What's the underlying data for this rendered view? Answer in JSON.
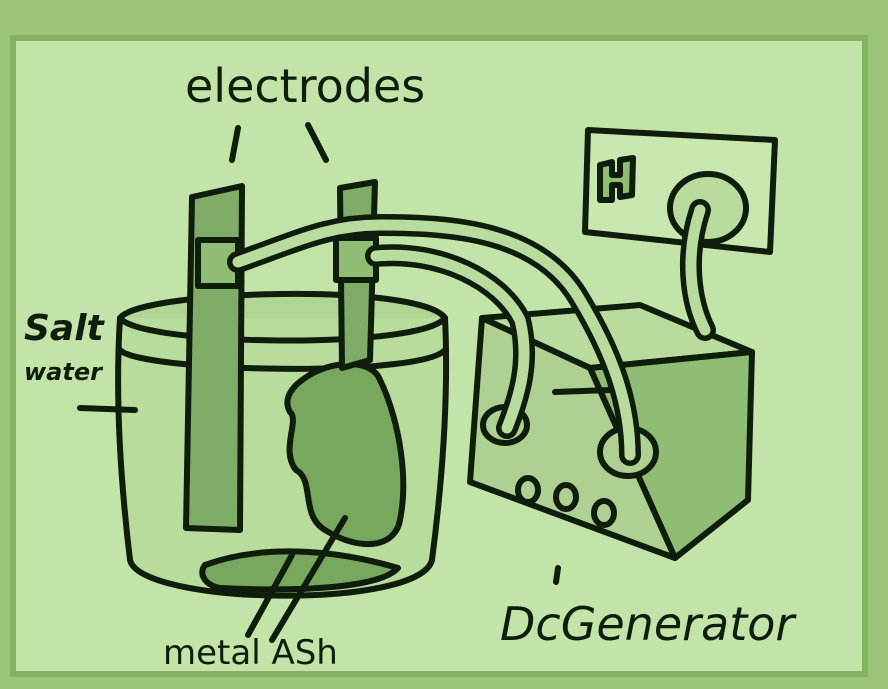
{
  "labels": {
    "electrodes": "electrodes",
    "salt": "Salt",
    "water": "water",
    "metal_ash": "metal ASh",
    "generator": "DcGenerator"
  },
  "colors": {
    "outer_border": "#9bc479",
    "paper": "#c2e4a8",
    "ink": "#0f1d0c",
    "electrode": "#7fac67",
    "sludge": "#78a75e",
    "water_tint": "#b0d595",
    "box_front": "#aed193",
    "box_side": "#8fbd73",
    "box_top": "#b9dc9e"
  }
}
